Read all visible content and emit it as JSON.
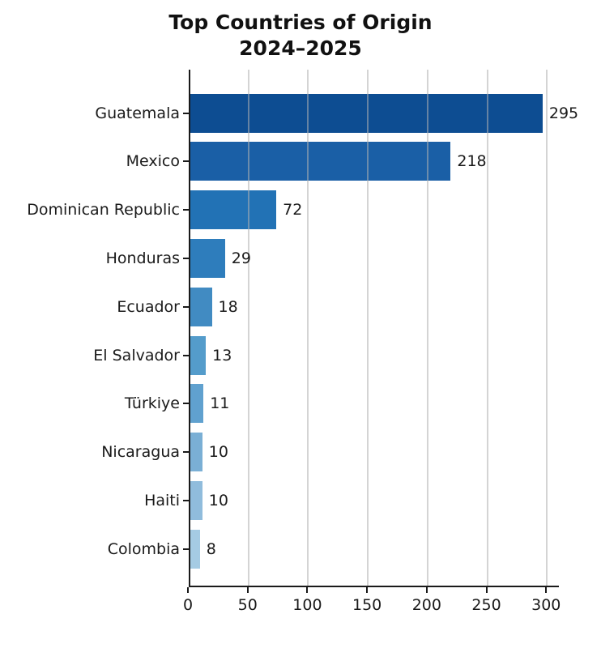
{
  "chart_data": {
    "type": "bar",
    "orientation": "horizontal",
    "title": "Top Countries of Origin",
    "subtitle": "2024–2025",
    "categories": [
      "Guatemala",
      "Mexico",
      "Dominican Republic",
      "Honduras",
      "Ecuador",
      "El Salvador",
      "Türkiye",
      "Nicaragua",
      "Haiti",
      "Colombia"
    ],
    "values": [
      295,
      218,
      72,
      29,
      18,
      13,
      11,
      10,
      10,
      8
    ],
    "value_labels": [
      "295",
      "218",
      "72",
      "29",
      "18",
      "13",
      "11",
      "10",
      "10",
      "8"
    ],
    "bar_colors": [
      "#0d4d92",
      "#1a5fa6",
      "#2272b5",
      "#2e7dbc",
      "#418bc2",
      "#549ccb",
      "#60a1cf",
      "#7aafd5",
      "#90bcdc",
      "#a5cbe3"
    ],
    "xlabel": "",
    "ylabel": "",
    "x_ticks": [
      0,
      50,
      100,
      150,
      200,
      250,
      300
    ],
    "x_tick_labels": [
      "0",
      "50",
      "100",
      "150",
      "200",
      "250",
      "300"
    ],
    "xlim": [
      0,
      310
    ],
    "grid": "vertical",
    "grid_on": true,
    "legend": "none",
    "colors": {
      "background": "#ffffff",
      "axis": "#1a1a1a",
      "gridline": "#d9d9d9",
      "text": "#1a1a1a"
    }
  }
}
